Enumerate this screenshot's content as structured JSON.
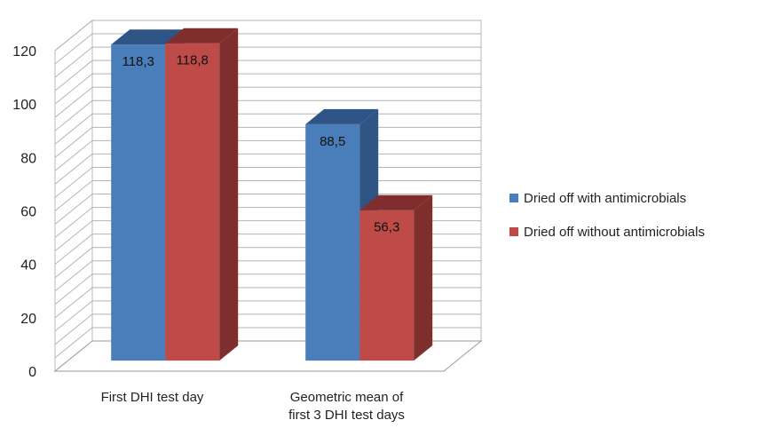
{
  "chart_data": {
    "type": "bar",
    "categories": [
      "First DHI test day",
      "Geometric mean of first 3 DHI test days"
    ],
    "category_label_lines": [
      [
        "First DHI test day"
      ],
      [
        "Geometric mean of",
        "first 3 DHI test days"
      ]
    ],
    "series": [
      {
        "name": "Dried off with antimicrobials",
        "values": [
          118.3,
          88.5
        ],
        "labels": [
          "118,3",
          "88,5"
        ],
        "color": "#4a7ebb",
        "dark": "#2f5486"
      },
      {
        "name": "Dried off without antimicrobials",
        "values": [
          118.8,
          56.3
        ],
        "labels": [
          "118,8",
          "56,3"
        ],
        "color": "#be4b48",
        "dark": "#7e2f2d"
      }
    ],
    "yticks": [
      "0",
      "20",
      "40",
      "60",
      "80",
      "100",
      "120"
    ],
    "ylim": [
      0,
      120
    ],
    "title": "",
    "xlabel": "",
    "ylabel": "",
    "grid": true,
    "legend_position": "right"
  }
}
